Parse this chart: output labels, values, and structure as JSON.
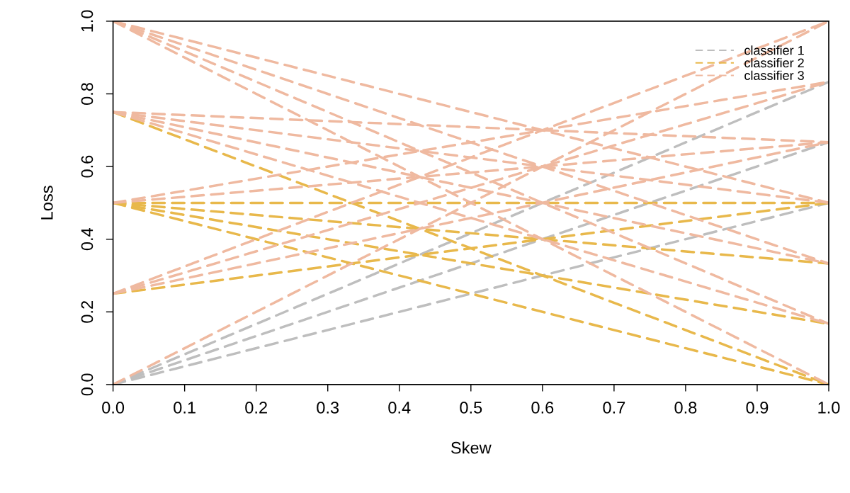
{
  "chart_data": {
    "type": "line",
    "xlabel": "Skew",
    "ylabel": "Loss",
    "xlim": [
      0,
      1
    ],
    "ylim": [
      0,
      1
    ],
    "xticks": [
      {
        "value": 0,
        "label": "0.0"
      },
      0.1,
      0.2,
      0.3,
      0.4,
      0.5,
      0.6,
      0.7,
      0.8,
      0.9,
      {
        "value": 1,
        "label": "1.0"
      }
    ],
    "yticks": [
      {
        "value": 0,
        "label": "0.0"
      },
      0.2,
      0.4,
      0.6,
      0.8,
      {
        "value": 1,
        "label": "1.0"
      }
    ],
    "grid": false,
    "legend": "top right",
    "line_style": "dashed",
    "marker": "none",
    "x": [
      0,
      1
    ],
    "series": [
      {
        "name": "classifier 1",
        "color": "#bebebe",
        "values": [
          0,
          0.833
        ]
      },
      {
        "color": "#bebebe",
        "values": [
          0,
          0.667
        ]
      },
      {
        "color": "#bebebe",
        "values": [
          0,
          0.5
        ]
      },
      {
        "name": "classifier 2",
        "color": "#e8b84b",
        "values": [
          0.75,
          0
        ]
      },
      {
        "color": "#e8b84b",
        "values": [
          0.5,
          0.5
        ]
      },
      {
        "color": "#e8b84b",
        "values": [
          0.5,
          0.333
        ]
      },
      {
        "color": "#e8b84b",
        "values": [
          0.5,
          0.167
        ]
      },
      {
        "color": "#e8b84b",
        "values": [
          0.5,
          0
        ]
      },
      {
        "color": "#e8b84b",
        "values": [
          0.25,
          0.5
        ]
      },
      {
        "name": "classifier 3",
        "color": "#efb9a0",
        "values": [
          0,
          1
        ]
      },
      {
        "color": "#efb9a0",
        "values": [
          0.25,
          1
        ]
      },
      {
        "color": "#efb9a0",
        "values": [
          0.25,
          0.833
        ]
      },
      {
        "color": "#efb9a0",
        "values": [
          0.25,
          0.667
        ]
      },
      {
        "color": "#efb9a0",
        "values": [
          1,
          0
        ]
      },
      {
        "color": "#efb9a0",
        "values": [
          1,
          0.167
        ]
      },
      {
        "color": "#efb9a0",
        "values": [
          1,
          0.333
        ]
      },
      {
        "color": "#efb9a0",
        "values": [
          1,
          0.5
        ]
      },
      {
        "color": "#efb9a0",
        "values": [
          0.75,
          0.667
        ]
      },
      {
        "color": "#efb9a0",
        "values": [
          0.75,
          0.5
        ]
      },
      {
        "color": "#efb9a0",
        "values": [
          0.75,
          0.333
        ]
      },
      {
        "color": "#efb9a0",
        "values": [
          0.75,
          0.167
        ]
      },
      {
        "color": "#efb9a0",
        "values": [
          0.5,
          0.667
        ]
      },
      {
        "color": "#efb9a0",
        "values": [
          0.5,
          0.833
        ]
      }
    ]
  }
}
